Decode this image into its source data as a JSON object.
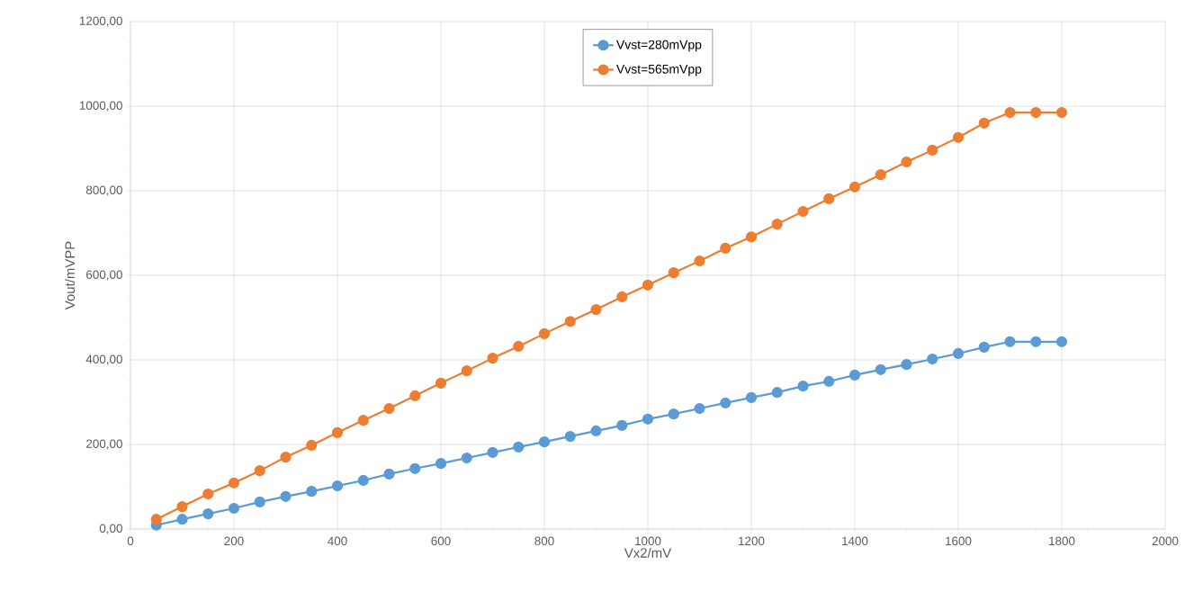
{
  "chart_data": {
    "type": "line",
    "xlabel": "Vx2/mV",
    "ylabel": "Vout/mVPP",
    "x": [
      50,
      100,
      150,
      200,
      250,
      300,
      350,
      400,
      450,
      500,
      550,
      600,
      650,
      700,
      750,
      800,
      850,
      900,
      950,
      1000,
      1050,
      1100,
      1150,
      1200,
      1250,
      1300,
      1350,
      1400,
      1450,
      1500,
      1550,
      1600,
      1650,
      1700,
      1750,
      1800
    ],
    "series": [
      {
        "name": "Vvst=280mVpp",
        "color": "#5b9bd5",
        "values": [
          9,
          23,
          36,
          49,
          64,
          77,
          89,
          102,
          115,
          130,
          143,
          155,
          168,
          181,
          194,
          206,
          219,
          232,
          245,
          260,
          272,
          285,
          298,
          311,
          323,
          338,
          349,
          364,
          377,
          389,
          402,
          415,
          430,
          443,
          443,
          443
        ]
      },
      {
        "name": "Vvst=565mVpp",
        "color": "#ed7d31",
        "values": [
          23,
          53,
          83,
          109,
          138,
          170,
          198,
          228,
          257,
          285,
          315,
          345,
          374,
          404,
          432,
          462,
          491,
          519,
          549,
          577,
          606,
          634,
          664,
          691,
          721,
          751,
          781,
          809,
          838,
          868,
          896,
          926,
          960,
          985,
          985,
          985
        ]
      }
    ],
    "xlim": [
      0,
      2000
    ],
    "xticks": [
      0,
      200,
      400,
      600,
      800,
      1000,
      1200,
      1400,
      1600,
      1800,
      2000
    ],
    "ylim": [
      0,
      1200
    ],
    "yticks": [
      {
        "value": 0,
        "label": "0,00"
      },
      {
        "value": 200,
        "label": "200,00"
      },
      {
        "value": 400,
        "label": "400,00"
      },
      {
        "value": 600,
        "label": "600,00"
      },
      {
        "value": 800,
        "label": "800,00"
      },
      {
        "value": 1000,
        "label": "1000,00"
      },
      {
        "value": 1200,
        "label": "1200,00"
      }
    ],
    "grid": true,
    "legend": "top",
    "marker": "circle",
    "line_style": "solid"
  }
}
